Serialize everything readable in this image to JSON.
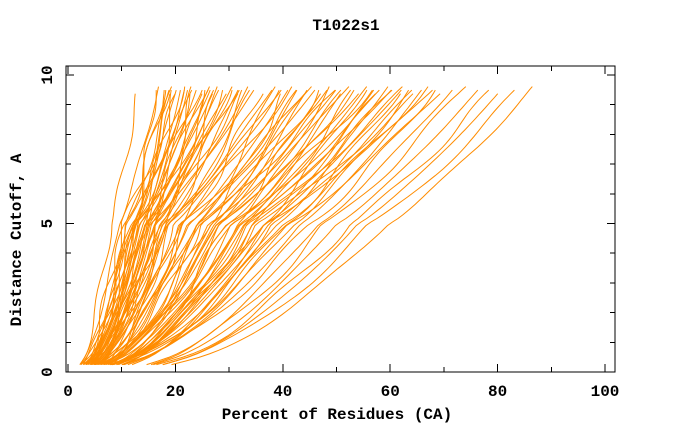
{
  "title": "T1022s1",
  "chart_data": {
    "type": "line",
    "title": "T1022s1",
    "xlabel": "Percent of Residues (CA)",
    "ylabel": "Distance Cutoff, A",
    "xlim": [
      0,
      102
    ],
    "ylim": [
      0,
      10.3
    ],
    "x_major_ticks": [
      0,
      20,
      40,
      60,
      80,
      100
    ],
    "x_minor_ticks": [
      10,
      30,
      50,
      70,
      90
    ],
    "y_major_ticks": [
      0,
      5,
      10
    ],
    "y_minor_ticks": [
      1,
      2,
      3,
      4,
      6,
      7,
      8,
      9
    ],
    "grid": false,
    "legend": "none",
    "background_color": "#ffffff",
    "axis_color": "#000000",
    "curve_color": "#ff8c00",
    "curve_anchor_cutoffs": [
      0.3,
      5.0,
      9.6
    ],
    "curves_note": "Each curve = one model; triples are percent-of-residues at distance cutoffs 0.3A, 5A and ~9.6A",
    "curves": [
      [
        2.0,
        8.0,
        13.0
      ],
      [
        2.9,
        12.5,
        16.2
      ],
      [
        2.4,
        9.5,
        17.0
      ],
      [
        3.5,
        12.0,
        17.5
      ],
      [
        2.7,
        14.5,
        18.0
      ],
      [
        3.2,
        10.5,
        18.4
      ],
      [
        2.6,
        13.0,
        18.9
      ],
      [
        3.8,
        11.0,
        19.3
      ],
      [
        2.9,
        15.5,
        19.8
      ],
      [
        3.6,
        12.8,
        20.2
      ],
      [
        2.8,
        10.0,
        20.6
      ],
      [
        4.2,
        14.0,
        21.0
      ],
      [
        3.1,
        11.5,
        21.5
      ],
      [
        4.5,
        16.0,
        22.0
      ],
      [
        3.3,
        12.2,
        22.3
      ],
      [
        4.8,
        14.8,
        22.8
      ],
      [
        3.5,
        10.8,
        23.2
      ],
      [
        4.2,
        16.5,
        23.6
      ],
      [
        3.7,
        13.5,
        24.0
      ],
      [
        5.0,
        11.8,
        24.5
      ],
      [
        4.0,
        15.0,
        25.0
      ],
      [
        3.4,
        17.5,
        25.4
      ],
      [
        5.2,
        12.5,
        25.9
      ],
      [
        4.3,
        14.2,
        26.3
      ],
      [
        5.5,
        16.8,
        26.8
      ],
      [
        4.1,
        13.2,
        27.2
      ],
      [
        3.6,
        18.0,
        27.7
      ],
      [
        5.3,
        15.5,
        28.1
      ],
      [
        4.4,
        12.9,
        28.6
      ],
      [
        5.8,
        17.2,
        29.0
      ],
      [
        4.6,
        14.6,
        29.5
      ],
      [
        3.8,
        19.0,
        30.0
      ],
      [
        5.5,
        16.2,
        30.6
      ],
      [
        4.8,
        13.8,
        31.2
      ],
      [
        4.0,
        18.5,
        31.8
      ],
      [
        6.2,
        15.8,
        32.4
      ],
      [
        5.0,
        21.0,
        33.0
      ],
      [
        4.2,
        17.0,
        33.7
      ],
      [
        6.0,
        19.5,
        34.4
      ],
      [
        4.9,
        15.2,
        35.1
      ],
      [
        6.5,
        22.0,
        35.8
      ],
      [
        5.2,
        18.8,
        38.0
      ],
      [
        7.2,
        24.5,
        38.6
      ],
      [
        5.5,
        20.5,
        39.2
      ],
      [
        6.8,
        17.8,
        39.9
      ],
      [
        5.8,
        26.0,
        40.5
      ],
      [
        5.0,
        22.5,
        41.2
      ],
      [
        7.5,
        19.2,
        41.9
      ],
      [
        6.2,
        27.5,
        42.6
      ],
      [
        5.4,
        23.8,
        43.3
      ],
      [
        7.0,
        21.2,
        44.0
      ],
      [
        6.0,
        28.5,
        44.7
      ],
      [
        8.2,
        25.0,
        45.4
      ],
      [
        6.5,
        22.2,
        46.1
      ],
      [
        5.6,
        30.0,
        46.8
      ],
      [
        7.8,
        26.5,
        47.5
      ],
      [
        6.3,
        23.5,
        48.2
      ],
      [
        9.0,
        31.5,
        48.9
      ],
      [
        7.2,
        27.8,
        49.6
      ],
      [
        6.0,
        24.8,
        50.3
      ],
      [
        8.5,
        33.0,
        51.0
      ],
      [
        6.8,
        29.0,
        51.7
      ],
      [
        9.5,
        26.2,
        52.4
      ],
      [
        7.5,
        34.5,
        53.1
      ],
      [
        6.5,
        30.5,
        53.8
      ],
      [
        8.8,
        27.5,
        54.5
      ],
      [
        7.8,
        36.0,
        55.2
      ],
      [
        6.9,
        32.0,
        55.9
      ],
      [
        10.0,
        29.2,
        56.6
      ],
      [
        8.2,
        37.5,
        57.3
      ],
      [
        7.2,
        33.5,
        58.0
      ],
      [
        9.2,
        30.8,
        58.7
      ],
      [
        8.5,
        39.0,
        59.4
      ],
      [
        7.6,
        35.0,
        60.1
      ],
      [
        10.5,
        32.2,
        60.8
      ],
      [
        9.0,
        40.5,
        61.5
      ],
      [
        8.0,
        36.5,
        62.2
      ],
      [
        9.8,
        33.8,
        63.0
      ],
      [
        8.6,
        42.0,
        63.8
      ],
      [
        11.2,
        38.0,
        64.6
      ],
      [
        9.3,
        35.2,
        65.4
      ],
      [
        10.2,
        43.5,
        66.2
      ],
      [
        9.6,
        39.5,
        67.0
      ],
      [
        11.8,
        36.8,
        67.8
      ],
      [
        10.0,
        45.0,
        68.6
      ],
      [
        10.8,
        41.0,
        69.4
      ],
      [
        14.5,
        46.5,
        71.5
      ],
      [
        15.0,
        48.0,
        74.0
      ],
      [
        16.0,
        50.0,
        76.5
      ],
      [
        16.5,
        52.5,
        79.5
      ],
      [
        17.5,
        54.0,
        80.5
      ],
      [
        18.0,
        56.5,
        84.0
      ],
      [
        19.5,
        59.5,
        87.0
      ]
    ]
  }
}
